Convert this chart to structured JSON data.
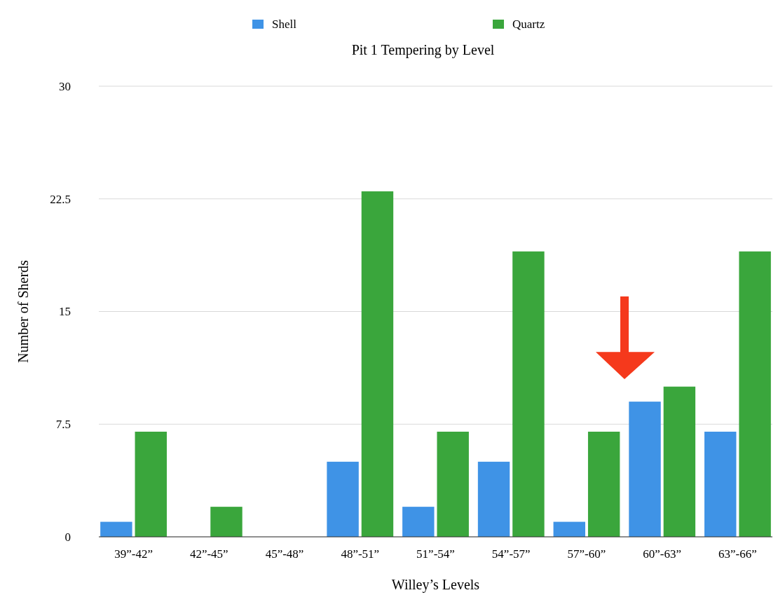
{
  "chart_data": {
    "type": "bar",
    "title": "Pit 1 Tempering by Level",
    "xlabel": "Willey’s Levels",
    "ylabel": "Number of Sherds",
    "categories": [
      "39”-42”",
      "42”-45”",
      "45”-48”",
      "48”-51”",
      "51”-54”",
      "54”-57”",
      "57”-60”",
      "60”-63”",
      "63”-66”"
    ],
    "series": [
      {
        "name": "Shell",
        "color": "#3f93e6",
        "values": [
          1,
          0,
          0,
          5,
          2,
          5,
          1,
          9,
          7
        ]
      },
      {
        "name": "Quartz",
        "color": "#3aa63c",
        "values": [
          7,
          2,
          0,
          23,
          7,
          19,
          7,
          10,
          19
        ]
      }
    ],
    "ylim": [
      0,
      30
    ],
    "yticks": [
      0,
      7.5,
      15,
      22.5,
      30
    ],
    "grid": "y",
    "legend": "top"
  }
}
